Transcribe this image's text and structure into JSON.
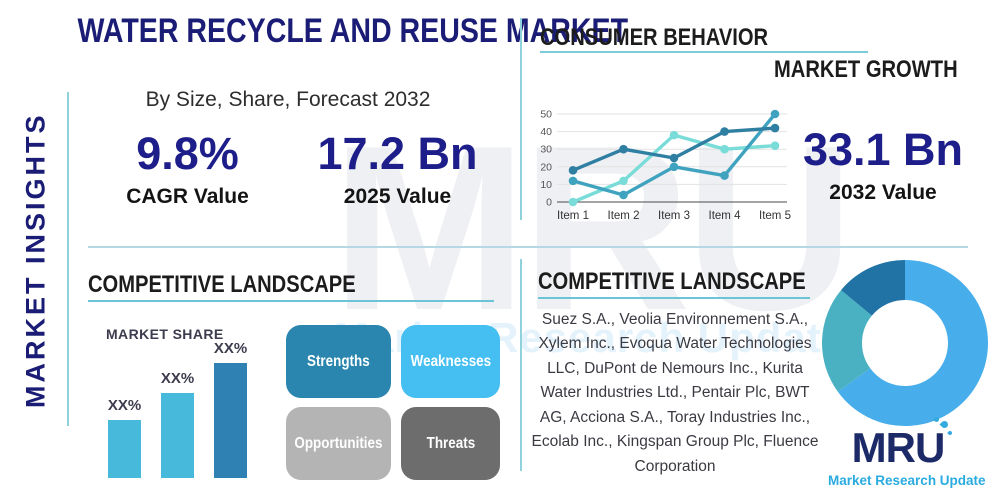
{
  "page": {
    "title": "WATER RECYCLE AND REUSE MARKET",
    "subtitle": "By Size, Share, Forecast 2032",
    "sidebar_label": "MARKET INSIGHTS"
  },
  "stats": {
    "cagr_value": "9.8%",
    "cagr_label": "CAGR Value",
    "value_2025": "17.2 Bn",
    "label_2025": "2025 Value",
    "value_2032": "33.1 Bn",
    "label_2032": "2032 Value"
  },
  "growth_section": {
    "heading_top": "CONSUMER BEHAVIOR",
    "heading_bottom": "MARKET GROWTH"
  },
  "competitive_left": {
    "heading": "COMPETITIVE LANDSCAPE",
    "swot": [
      {
        "label": "Strengths",
        "color": "#2a86ae"
      },
      {
        "label": "Weaknesses",
        "color": "#45bff2"
      },
      {
        "label": "Opportunities",
        "color": "#b4b4b4"
      },
      {
        "label": "Threats",
        "color": "#6d6d6d"
      }
    ]
  },
  "competitive_right": {
    "heading": "COMPETITIVE LANDSCAPE",
    "companies": "Suez S.A., Veolia Environnement S.A., Xylem Inc., Evoqua Water Technologies LLC, DuPont de Nemours Inc., Kurita Water Industries Ltd., Pentair Plc, BWT AG, Acciona S.A., Toray Industries Inc., Ecolab Inc., Kingspan Group Plc, Fluence Corporation"
  },
  "logo": {
    "text": "MRU",
    "tagline": "Market Research Update"
  },
  "watermark": {
    "text": "MRU",
    "tagline": "Market Research Update"
  },
  "chart_data": [
    {
      "type": "line",
      "title": "CONSUMER BEHAVIOR MARKET GROWTH",
      "x": [
        "Item 1",
        "Item 2",
        "Item 3",
        "Item 4",
        "Item 5"
      ],
      "series": [
        {
          "name": "dark-blue-series",
          "color": "#2f7fa3",
          "values": [
            18,
            30,
            25,
            40,
            42
          ]
        },
        {
          "name": "teal-series",
          "color": "#3fa3bf",
          "values": [
            12,
            4,
            20,
            15,
            50
          ]
        },
        {
          "name": "light-cyan-series",
          "color": "#7adcd8",
          "values": [
            0,
            12,
            38,
            30,
            32
          ]
        }
      ],
      "ylim": [
        0,
        50
      ],
      "yticks": [
        0,
        10,
        20,
        30,
        40,
        50
      ],
      "grid": true,
      "legend": false
    },
    {
      "type": "bar",
      "title": "MARKET SHARE",
      "categories": [
        "bar-1",
        "bar-2",
        "bar-3"
      ],
      "values": [
        58,
        85,
        115
      ],
      "value_labels": [
        "XX%",
        "XX%",
        "XX%"
      ],
      "colors": [
        "#47b9da",
        "#47b9da",
        "#2e81b2"
      ],
      "ylabel": "",
      "xlabel": ""
    },
    {
      "type": "pie",
      "donut": true,
      "slices": [
        {
          "name": "light-blue-slice",
          "value": 65,
          "color": "#47aeeb"
        },
        {
          "name": "teal-slice",
          "value": 21,
          "color": "#4ab1c2"
        },
        {
          "name": "dark-blue-slice",
          "value": 14,
          "color": "#2172a5"
        }
      ],
      "legend": false
    }
  ]
}
